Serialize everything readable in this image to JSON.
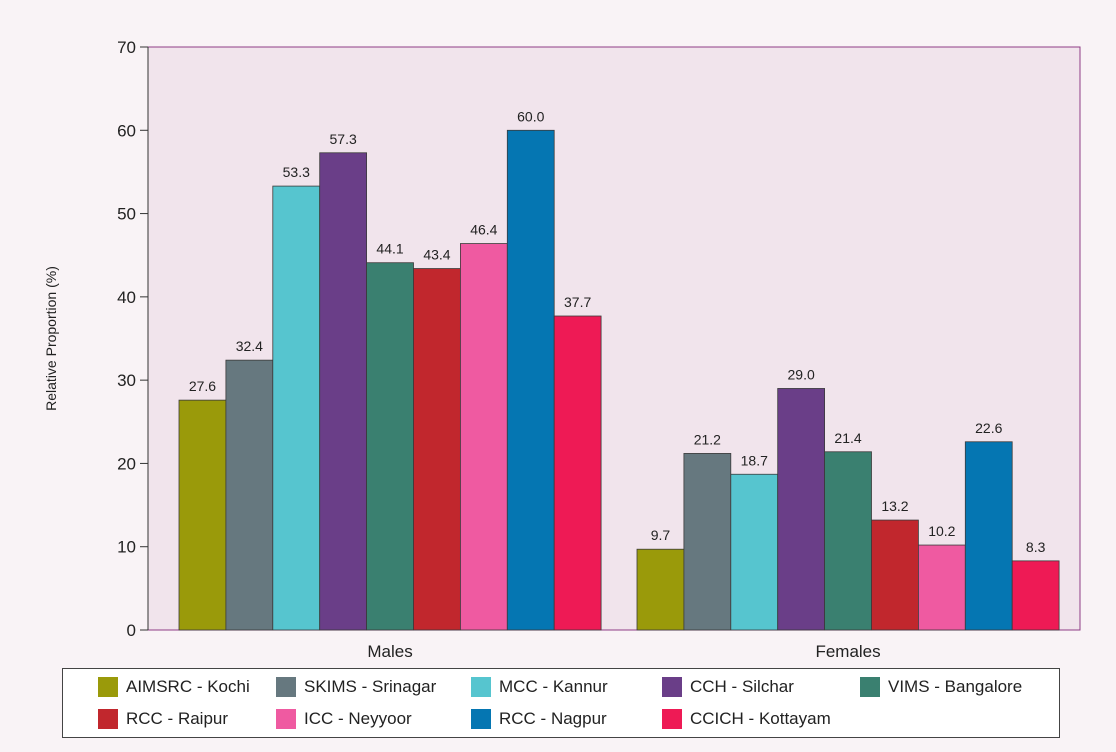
{
  "chart_data": {
    "type": "bar",
    "title": "",
    "xlabel": "",
    "ylabel": "Relative Proportion (%)",
    "ylim": [
      0,
      70
    ],
    "yticks": [
      0,
      10,
      20,
      30,
      40,
      50,
      60,
      70
    ],
    "grid": false,
    "legend_position": "bottom",
    "categories": [
      "Males",
      "Females"
    ],
    "series": [
      {
        "name": "AIMSRC - Kochi",
        "color": "#9a9a0a",
        "values": [
          27.6,
          9.7
        ],
        "labels": [
          "27.6",
          "9.7"
        ]
      },
      {
        "name": "SKIMS - Srinagar",
        "color": "#66787f",
        "values": [
          32.4,
          21.2
        ],
        "labels": [
          "32.4",
          "21.2"
        ]
      },
      {
        "name": "MCC - Kannur",
        "color": "#56c5cf",
        "values": [
          53.3,
          18.7
        ],
        "labels": [
          "53.3",
          "18.7"
        ]
      },
      {
        "name": "CCH - Silchar",
        "color": "#6a3e88",
        "values": [
          57.3,
          29.0
        ],
        "labels": [
          "57.3",
          "29.0"
        ]
      },
      {
        "name": "VIMS - Bangalore",
        "color": "#3a8070",
        "values": [
          44.1,
          21.4
        ],
        "labels": [
          "44.1",
          "21.4"
        ]
      },
      {
        "name": "RCC - Raipur",
        "color": "#c1272d",
        "values": [
          43.4,
          13.2
        ],
        "labels": [
          "43.4",
          "13.2"
        ]
      },
      {
        "name": "ICC - Neyyoor",
        "color": "#ef5aa1",
        "values": [
          46.4,
          10.2
        ],
        "labels": [
          "46.4",
          "10.2"
        ]
      },
      {
        "name": "RCC - Nagpur",
        "color": "#0576b2",
        "values": [
          60.0,
          22.6
        ],
        "labels": [
          "60.0",
          "22.6"
        ]
      },
      {
        "name": "CCICH - Kottayam",
        "color": "#ee1a55",
        "values": [
          37.7,
          8.3
        ],
        "labels": [
          "37.7",
          "8.3"
        ]
      }
    ],
    "colors": {
      "plot_background": "#f1e4ec",
      "plot_border": "#8e3c86",
      "page_background": "#f9f3f6"
    }
  }
}
